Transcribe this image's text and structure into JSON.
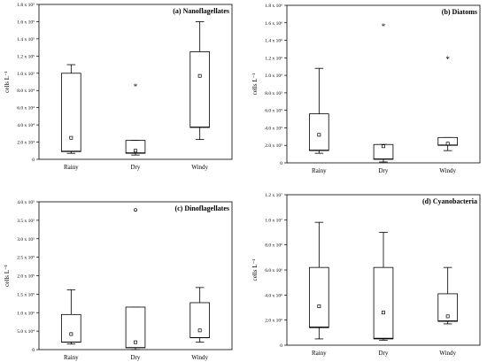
{
  "chart_data": [
    {
      "type": "box",
      "title": "(a) Nanoflagellates",
      "ylabel": "cells L⁻¹",
      "ylim": [
        0,
        180000
      ],
      "yticks": [
        0,
        20000,
        40000,
        60000,
        80000,
        100000,
        120000,
        140000,
        160000,
        180000
      ],
      "ytick_labels": [
        "0",
        "2.0 x 10⁴",
        "4.0 x 10⁴",
        "6.0 x 10⁴",
        "8.0 x 10⁴",
        "1.0 x 10⁵",
        "1.2 x 10⁵",
        "1.4 x 10⁵",
        "1.6 x 10⁵",
        "1.8 x 10⁵"
      ],
      "categories": [
        "Rainy",
        "Dry",
        "Windy"
      ],
      "boxes": [
        {
          "whisker_low": 7000,
          "q1": 9000,
          "median": 9500,
          "q3": 100000,
          "whisker_high": 110000,
          "mean": 25000,
          "outliers": []
        },
        {
          "whisker_low": 5000,
          "q1": 7000,
          "median": 7500,
          "q3": 22000,
          "whisker_high": 22000,
          "mean": 10000,
          "outliers": [
            {
              "value": 85000,
              "marker": "star"
            }
          ]
        },
        {
          "whisker_low": 23000,
          "q1": 37000,
          "median": 37500,
          "q3": 125000,
          "whisker_high": 160000,
          "mean": 97000,
          "outliers": []
        }
      ]
    },
    {
      "type": "box",
      "title": "(b) Diatoms",
      "ylabel": "cells L⁻¹",
      "ylim": [
        0,
        1800000
      ],
      "yticks": [
        0,
        200000,
        400000,
        600000,
        800000,
        1000000,
        1200000,
        1400000,
        1600000,
        1800000
      ],
      "ytick_labels": [
        "0",
        "2.0 x 10⁵",
        "4.0 x 10⁵",
        "6.0 x 10⁵",
        "8.0 x 10⁵",
        "1.0 x 10⁶",
        "1.2 x 10⁶",
        "1.4 x 10⁶",
        "1.6 x 10⁶",
        "1.8 x 10⁶"
      ],
      "categories": [
        "Rainy",
        "Dry",
        "Windy"
      ],
      "boxes": [
        {
          "whisker_low": 110000,
          "q1": 140000,
          "median": 145000,
          "q3": 560000,
          "whisker_high": 1080000,
          "mean": 320000,
          "outliers": []
        },
        {
          "whisker_low": 10000,
          "q1": 40000,
          "median": 45000,
          "q3": 210000,
          "whisker_high": 210000,
          "mean": 190000,
          "outliers": [
            {
              "value": 1560000,
              "marker": "star"
            }
          ]
        },
        {
          "whisker_low": 140000,
          "q1": 200000,
          "median": 205000,
          "q3": 290000,
          "whisker_high": 290000,
          "mean": 220000,
          "outliers": [
            {
              "value": 1190000,
              "marker": "star"
            }
          ]
        }
      ]
    },
    {
      "type": "box",
      "title": "(c) Dinoflagellates",
      "ylabel": "cells L⁻¹",
      "ylim": [
        0,
        400000
      ],
      "yticks": [
        0,
        50000,
        100000,
        150000,
        200000,
        250000,
        300000,
        350000,
        400000
      ],
      "ytick_labels": [
        "0",
        "5.0 x 10⁴",
        "1.0 x 10⁵",
        "1.5 x 10⁵",
        "2.0 x 10⁵",
        "2.5 x 10⁵",
        "3.0 x 10⁵",
        "3.5 x 10⁵",
        "4.0 x 10⁵"
      ],
      "categories": [
        "Rainy",
        "Dry",
        "Windy"
      ],
      "boxes": [
        {
          "whisker_low": 15000,
          "q1": 20000,
          "median": 20500,
          "q3": 95000,
          "whisker_high": 162000,
          "mean": 42000,
          "outliers": []
        },
        {
          "whisker_low": 0,
          "q1": 5000,
          "median": 5500,
          "q3": 115000,
          "whisker_high": 115000,
          "mean": 20000,
          "outliers": [
            {
              "value": 378000,
              "marker": "circle"
            }
          ]
        },
        {
          "whisker_low": 20000,
          "q1": 32000,
          "median": 32500,
          "q3": 127000,
          "whisker_high": 168000,
          "mean": 52000,
          "outliers": []
        }
      ]
    },
    {
      "type": "box",
      "title": "(d) Cyanobacteria",
      "ylabel": "cells L⁻¹",
      "ylim": [
        0,
        12000000
      ],
      "yticks": [
        0,
        2000000,
        4000000,
        6000000,
        8000000,
        10000000,
        12000000
      ],
      "ytick_labels": [
        "0",
        "2.0 x 10⁶",
        "4.0 x 10⁶",
        "6.0 x 10⁶",
        "8.0 x 10⁶",
        "1.0 x 10⁷",
        "1.2 x 10⁷"
      ],
      "categories": [
        "Rainy",
        "Dry",
        "Windy"
      ],
      "boxes": [
        {
          "whisker_low": 500000,
          "q1": 1400000,
          "median": 1450000,
          "q3": 6200000,
          "whisker_high": 9800000,
          "mean": 3100000,
          "outliers": []
        },
        {
          "whisker_low": 400000,
          "q1": 500000,
          "median": 550000,
          "q3": 6200000,
          "whisker_high": 9000000,
          "mean": 2600000,
          "outliers": []
        },
        {
          "whisker_low": 1700000,
          "q1": 1900000,
          "median": 1950000,
          "q3": 4100000,
          "whisker_high": 6200000,
          "mean": 2300000,
          "outliers": []
        }
      ]
    }
  ]
}
